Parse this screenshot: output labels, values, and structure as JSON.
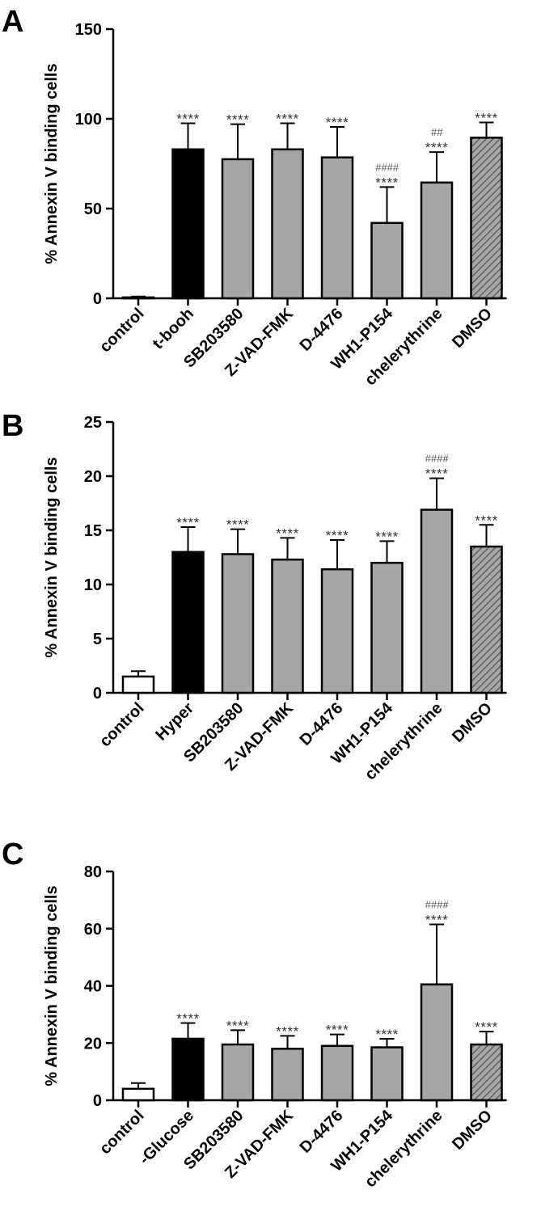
{
  "chart_data": [
    {
      "panel": "A",
      "type": "bar",
      "ylabel": "% Annexin V binding cells",
      "ylim": [
        0,
        150
      ],
      "yticks": [
        "0",
        "50",
        "100",
        "150"
      ],
      "categories": [
        "control",
        "t-booh",
        "SB203580",
        "Z-VAD-FMK",
        "D-4476",
        "WH1-P154",
        "chelerythrine",
        "DMSO"
      ],
      "values": [
        0.5,
        83,
        77.5,
        83,
        78.5,
        42,
        64.5,
        89.5
      ],
      "errors": [
        0.5,
        14.5,
        19.5,
        14.5,
        17,
        20,
        17,
        8.5
      ],
      "stars": [
        "",
        "****",
        "****",
        "****",
        "****",
        "****",
        "****",
        "****"
      ],
      "hashes": [
        "",
        "",
        "",
        "",
        "",
        "####",
        "##",
        ""
      ],
      "fills": [
        "white",
        "black",
        "gray",
        "gray",
        "gray",
        "gray",
        "gray",
        "hatch"
      ]
    },
    {
      "panel": "B",
      "type": "bar",
      "ylabel": "% Annexin V binding cells",
      "ylim": [
        0,
        25
      ],
      "yticks": [
        "0",
        "5",
        "10",
        "15",
        "20",
        "25"
      ],
      "categories": [
        "control",
        "Hyper",
        "SB203580",
        "Z-VAD-FMK",
        "D-4476",
        "WH1-P154",
        "chelerythrine",
        "DMSO"
      ],
      "values": [
        1.5,
        13,
        12.8,
        12.3,
        11.4,
        12,
        16.9,
        13.5
      ],
      "errors": [
        0.5,
        2.3,
        2.3,
        2,
        2.7,
        2,
        2.9,
        2
      ],
      "stars": [
        "",
        "****",
        "****",
        "****",
        "****",
        "****",
        "****",
        "****"
      ],
      "hashes": [
        "",
        "",
        "",
        "",
        "",
        "",
        "####",
        ""
      ],
      "fills": [
        "white",
        "black",
        "gray",
        "gray",
        "gray",
        "gray",
        "gray",
        "hatch"
      ]
    },
    {
      "panel": "C",
      "type": "bar",
      "ylabel": "% Annexin V binding cells",
      "ylim": [
        0,
        80
      ],
      "yticks": [
        "0",
        "20",
        "40",
        "60",
        "80"
      ],
      "categories": [
        "control",
        "-Glucose",
        "SB203580",
        "Z-VAD-FMK",
        "D-4476",
        "WH1-P154",
        "chelerythrine",
        "DMSO"
      ],
      "values": [
        4,
        21.5,
        19.5,
        18,
        19,
        18.5,
        40.5,
        19.5
      ],
      "errors": [
        2,
        5.5,
        5,
        4.5,
        4,
        3,
        21,
        4.5
      ],
      "stars": [
        "",
        "****",
        "****",
        "****",
        "****",
        "****",
        "****",
        "****"
      ],
      "hashes": [
        "",
        "",
        "",
        "",
        "",
        "",
        "####",
        ""
      ],
      "fills": [
        "white",
        "black",
        "gray",
        "gray",
        "gray",
        "gray",
        "gray",
        "hatch"
      ]
    }
  ],
  "colors": {
    "bar_black": "#000000",
    "bar_gray": "#a6a6a6",
    "bar_white": "#ffffff",
    "hatch_bg": "#a6a6a6",
    "hatch_line": "#555555",
    "annotation": "#333333"
  }
}
